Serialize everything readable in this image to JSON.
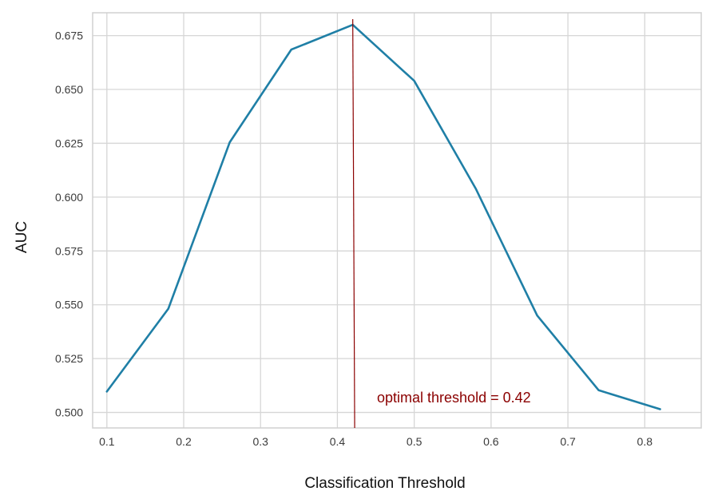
{
  "chart_data": {
    "type": "line",
    "title": "",
    "xlabel": "Classification Threshold",
    "ylabel": "AUC",
    "xlim": [
      0.0815,
      0.8735
    ],
    "ylim": [
      0.4928,
      0.6856
    ],
    "x_ticks": [
      "0.1",
      "0.2",
      "0.3",
      "0.4",
      "0.5",
      "0.6",
      "0.7",
      "0.8"
    ],
    "y_ticks": [
      "0.500",
      "0.525",
      "0.550",
      "0.575",
      "0.600",
      "0.625",
      "0.650",
      "0.675"
    ],
    "grid": true,
    "series": [
      {
        "color": "#1f7fa6",
        "x": [
          0.1,
          0.18,
          0.26,
          0.34,
          0.42,
          0.5,
          0.58,
          0.66,
          0.74,
          0.82
        ],
        "y": [
          0.5097,
          0.5482,
          0.6255,
          0.6685,
          0.68,
          0.654,
          0.604,
          0.545,
          0.5103,
          0.5015
        ]
      }
    ],
    "annotation": {
      "text": "optimal threshold = 0.42",
      "x": 0.42,
      "line_x_bottom": 0.4225,
      "color": "#8b0000"
    }
  }
}
